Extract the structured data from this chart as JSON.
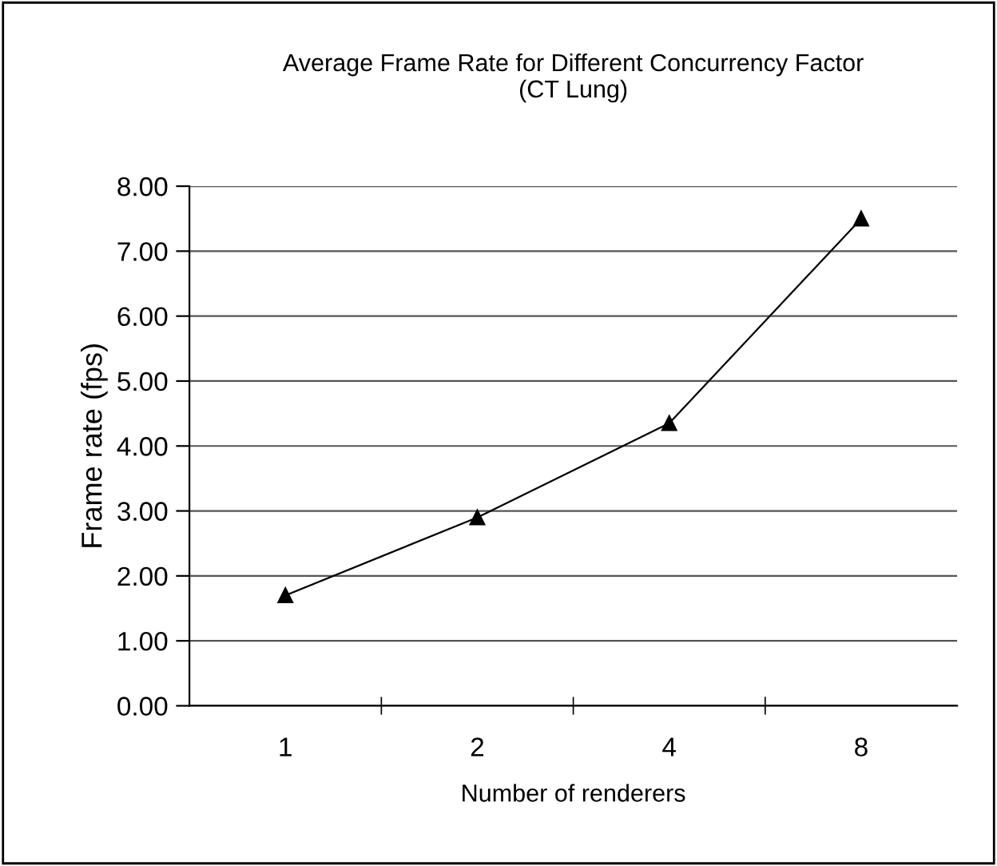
{
  "chart_data": {
    "type": "line",
    "title": "Average Frame Rate for Different Concurrency Factor\n(CT Lung)",
    "xlabel": "Number of renderers",
    "ylabel": "Frame rate (fps)",
    "categories": [
      "1",
      "2",
      "4",
      "8"
    ],
    "series": [
      {
        "color": "#000000",
        "values": [
          1.7,
          2.9,
          4.35,
          7.5
        ]
      }
    ],
    "ylim": [
      0,
      8
    ],
    "yticks": [
      {
        "value": 0,
        "label": "0.00"
      },
      {
        "value": 1,
        "label": "1.00"
      },
      {
        "value": 2,
        "label": "2.00"
      },
      {
        "value": 3,
        "label": "3.00"
      },
      {
        "value": 4,
        "label": "4.00"
      },
      {
        "value": 5,
        "label": "5.00"
      },
      {
        "value": 6,
        "label": "6.00"
      },
      {
        "value": 7,
        "label": "7.00"
      },
      {
        "value": 8,
        "label": "8.00"
      }
    ],
    "grid": "y",
    "marker": "triangle",
    "line_style": "solid",
    "legend": false
  }
}
